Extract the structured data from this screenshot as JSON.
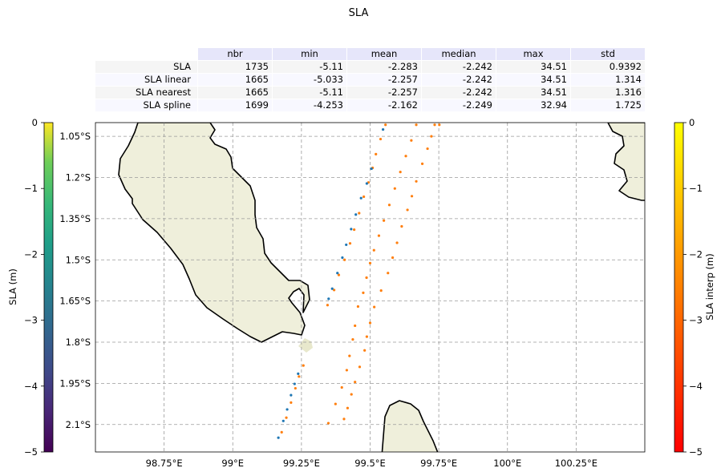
{
  "chart_data": {
    "type": "scatter",
    "title": "SLA",
    "table": {
      "columns": [
        "nbr",
        "min",
        "mean",
        "median",
        "max",
        "std"
      ],
      "rows": [
        {
          "label": "SLA",
          "values": [
            "1735",
            "-5.11",
            "-2.283",
            "-2.242",
            "34.51",
            "0.9392"
          ]
        },
        {
          "label": "SLA linear",
          "values": [
            "1665",
            "-5.033",
            "-2.257",
            "-2.242",
            "34.51",
            "1.314"
          ]
        },
        {
          "label": "SLA nearest",
          "values": [
            "1665",
            "-5.11",
            "-2.257",
            "-2.242",
            "34.51",
            "1.316"
          ]
        },
        {
          "label": "SLA spline",
          "values": [
            "1699",
            "-4.253",
            "-2.162",
            "-2.249",
            "32.94",
            "1.725"
          ]
        }
      ]
    },
    "map": {
      "lon_range": [
        98.5,
        100.5
      ],
      "lat_range": [
        -2.2,
        -1.0
      ],
      "lon_ticks": [
        {
          "v": 98.75,
          "label": "98.75°E"
        },
        {
          "v": 99.0,
          "label": "99°E"
        },
        {
          "v": 99.25,
          "label": "99.25°E"
        },
        {
          "v": 99.5,
          "label": "99.5°E"
        },
        {
          "v": 99.75,
          "label": "99.75°E"
        },
        {
          "v": 100.0,
          "label": "100°E"
        },
        {
          "v": 100.25,
          "label": "100.25°E"
        }
      ],
      "lat_ticks": [
        {
          "v": -1.05,
          "label": "1.05°S"
        },
        {
          "v": -1.2,
          "label": "1.2°S"
        },
        {
          "v": -1.35,
          "label": "1.35°S"
        },
        {
          "v": -1.5,
          "label": "1.5°S"
        },
        {
          "v": -1.65,
          "label": "1.65°S"
        },
        {
          "v": -1.8,
          "label": "1.8°S"
        },
        {
          "v": -1.95,
          "label": "1.95°S"
        },
        {
          "v": -2.1,
          "label": "2.1°S"
        }
      ],
      "grid": true,
      "land_color": "#efefdb"
    },
    "colorbar_left": {
      "label": "SLA (m)",
      "range": [
        -5,
        0
      ],
      "ticks": [
        0,
        -1,
        -2,
        -3,
        -4,
        -5
      ],
      "tick_labels": [
        "0",
        "−1",
        "−2",
        "−3",
        "−4",
        "−5"
      ],
      "colormap": "viridis"
    },
    "colorbar_right": {
      "label": "SLA interp (m)",
      "range": [
        -5,
        0
      ],
      "ticks": [
        0,
        -1,
        -2,
        -3,
        -4,
        -5
      ],
      "tick_labels": [
        "0",
        "−1",
        "−2",
        "−3",
        "−4",
        "−5"
      ],
      "colormap": "autumn"
    },
    "series": [
      {
        "color": "#1f77b4",
        "points": [
          [
            99.547,
            -1.025
          ],
          [
            99.505,
            -1.168
          ],
          [
            99.488,
            -1.222
          ],
          [
            99.467,
            -1.275
          ],
          [
            99.448,
            -1.335
          ],
          [
            99.431,
            -1.388
          ],
          [
            99.413,
            -1.445
          ],
          [
            99.399,
            -1.492
          ],
          [
            99.381,
            -1.548
          ],
          [
            99.362,
            -1.605
          ],
          [
            99.349,
            -1.642
          ],
          [
            99.238,
            -1.915
          ],
          [
            99.225,
            -1.952
          ],
          [
            99.212,
            -1.993
          ],
          [
            99.198,
            -2.045
          ],
          [
            99.184,
            -2.087
          ],
          [
            99.166,
            -2.148
          ],
          [
            99.141,
            -2.206
          ]
        ]
      },
      {
        "color": "#ff7f0e",
        "points": [
          [
            99.556,
            -1.008
          ],
          [
            99.538,
            -1.06
          ],
          [
            99.521,
            -1.115
          ],
          [
            99.509,
            -1.165
          ],
          [
            99.494,
            -1.218
          ],
          [
            99.477,
            -1.27
          ],
          [
            99.46,
            -1.33
          ],
          [
            99.442,
            -1.39
          ],
          [
            99.427,
            -1.44
          ],
          [
            99.407,
            -1.5
          ],
          [
            99.386,
            -1.555
          ],
          [
            99.369,
            -1.61
          ],
          [
            99.345,
            -1.665
          ],
          [
            99.257,
            -1.885
          ],
          [
            99.241,
            -1.925
          ],
          [
            99.228,
            -1.968
          ],
          [
            99.212,
            -2.02
          ],
          [
            99.195,
            -2.075
          ],
          [
            99.178,
            -2.128
          ],
          [
            99.153,
            -2.205
          ],
          [
            99.668,
            -1.008
          ],
          [
            99.65,
            -1.065
          ],
          [
            99.63,
            -1.122
          ],
          [
            99.61,
            -1.18
          ],
          [
            99.59,
            -1.24
          ],
          [
            99.57,
            -1.3
          ],
          [
            99.55,
            -1.357
          ],
          [
            99.532,
            -1.412
          ],
          [
            99.514,
            -1.465
          ],
          [
            99.5,
            -1.512
          ],
          [
            99.487,
            -1.565
          ],
          [
            99.475,
            -1.62
          ],
          [
            99.456,
            -1.67
          ],
          [
            99.445,
            -1.74
          ],
          [
            99.437,
            -1.79
          ],
          [
            99.425,
            -1.85
          ],
          [
            99.415,
            -1.902
          ],
          [
            99.397,
            -1.965
          ],
          [
            99.374,
            -2.025
          ],
          [
            99.348,
            -2.095
          ],
          [
            99.34,
            -2.205
          ],
          [
            99.25,
            -2.205
          ],
          [
            99.735,
            -1.008
          ],
          [
            99.723,
            -1.05
          ],
          [
            99.709,
            -1.095
          ],
          [
            99.69,
            -1.15
          ],
          [
            99.668,
            -1.214
          ],
          [
            99.652,
            -1.268
          ],
          [
            99.636,
            -1.318
          ],
          [
            99.615,
            -1.378
          ],
          [
            99.598,
            -1.438
          ],
          [
            99.582,
            -1.492
          ],
          [
            99.565,
            -1.548
          ],
          [
            99.54,
            -1.612
          ],
          [
            99.515,
            -1.672
          ],
          [
            99.5,
            -1.73
          ],
          [
            99.488,
            -1.78
          ],
          [
            99.48,
            -1.83
          ],
          [
            99.462,
            -1.89
          ],
          [
            99.445,
            -1.945
          ],
          [
            99.432,
            -1.99
          ],
          [
            99.418,
            -2.04
          ],
          [
            99.405,
            -2.08
          ],
          [
            99.752,
            -1.008
          ]
        ]
      }
    ]
  }
}
